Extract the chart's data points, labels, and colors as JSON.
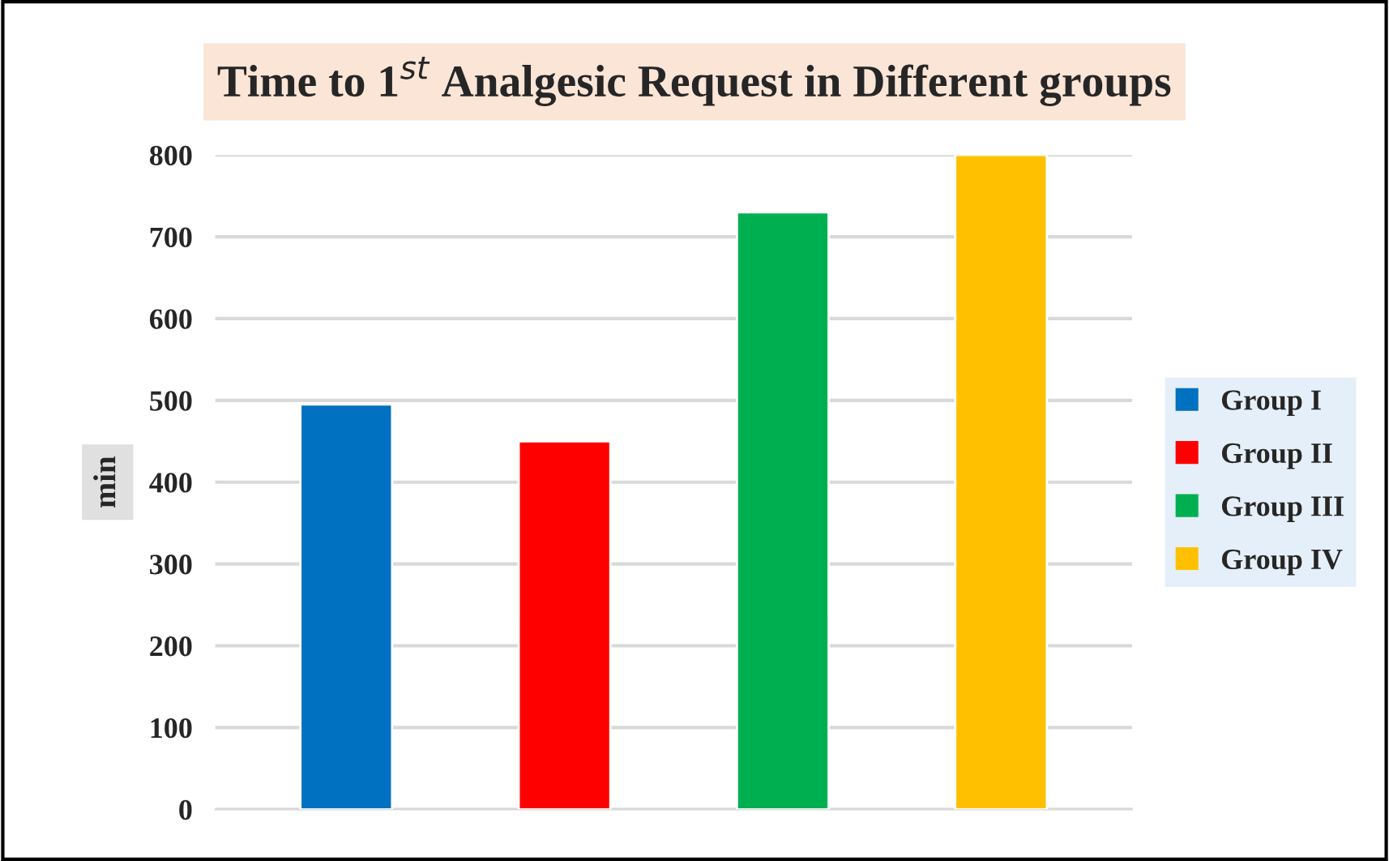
{
  "chart_data": {
    "type": "bar",
    "title": "Time to 1$^{st}$ Analgesic Request in Different groups",
    "ylabel": "min",
    "categories": [
      null,
      null,
      null,
      null
    ],
    "series": [
      {
        "name": "Group I",
        "color": "#0070c0",
        "values": [
          495,
          null,
          null,
          null
        ]
      },
      {
        "name": "Group II",
        "color": "#ff0000",
        "values": [
          null,
          450,
          null,
          null
        ]
      },
      {
        "name": "Group III",
        "color": "#00b050",
        "values": [
          null,
          null,
          730,
          null
        ]
      },
      {
        "name": "Group IV",
        "color": "#ffc000",
        "values": [
          null,
          null,
          null,
          800
        ]
      }
    ],
    "ylim": [
      0,
      800
    ],
    "yticks": [
      0,
      100,
      200,
      300,
      400,
      500,
      600,
      700,
      800
    ],
    "grid": "y",
    "legend": "right"
  }
}
